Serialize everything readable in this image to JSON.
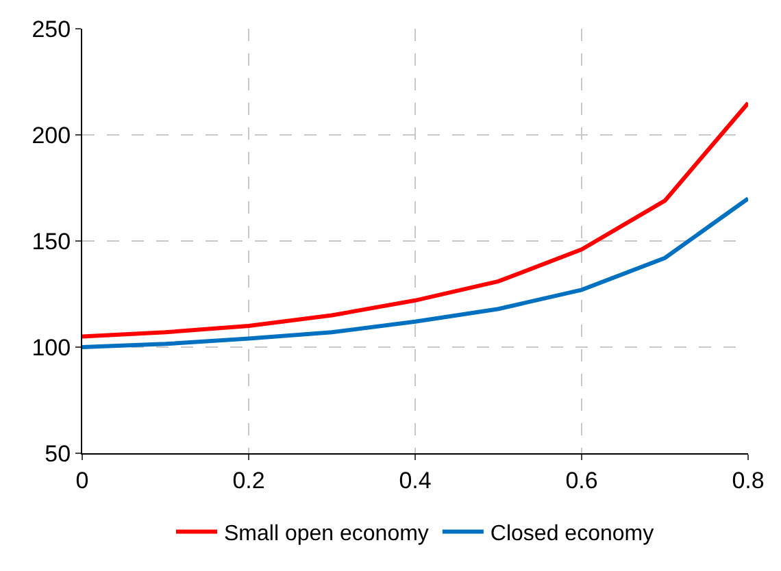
{
  "chart_data": {
    "type": "line",
    "x": [
      0,
      0.1,
      0.2,
      0.3,
      0.4,
      0.5,
      0.6,
      0.7,
      0.8
    ],
    "series": [
      {
        "name": "Small open economy",
        "color": "#ff0000",
        "values": [
          105,
          107,
          110,
          115,
          122,
          131,
          146,
          169,
          215
        ]
      },
      {
        "name": "Closed economy",
        "color": "#0070c0",
        "values": [
          100,
          101.5,
          104,
          107,
          112,
          118,
          127,
          142,
          170
        ]
      }
    ],
    "xlim": [
      0,
      0.8
    ],
    "xticks": [
      0,
      {
        "value": 0.2,
        "label": "0.2"
      },
      {
        "value": 0.4,
        "label": "0.4"
      },
      {
        "value": 0.6,
        "label": "0.6"
      },
      {
        "value": 0.8,
        "label": "0.8"
      }
    ],
    "ylim": [
      50,
      250
    ],
    "yticks": [
      50,
      100,
      150,
      200,
      250
    ],
    "grid": true,
    "legend": "bottom",
    "marker": "none",
    "line_style": "solid"
  }
}
